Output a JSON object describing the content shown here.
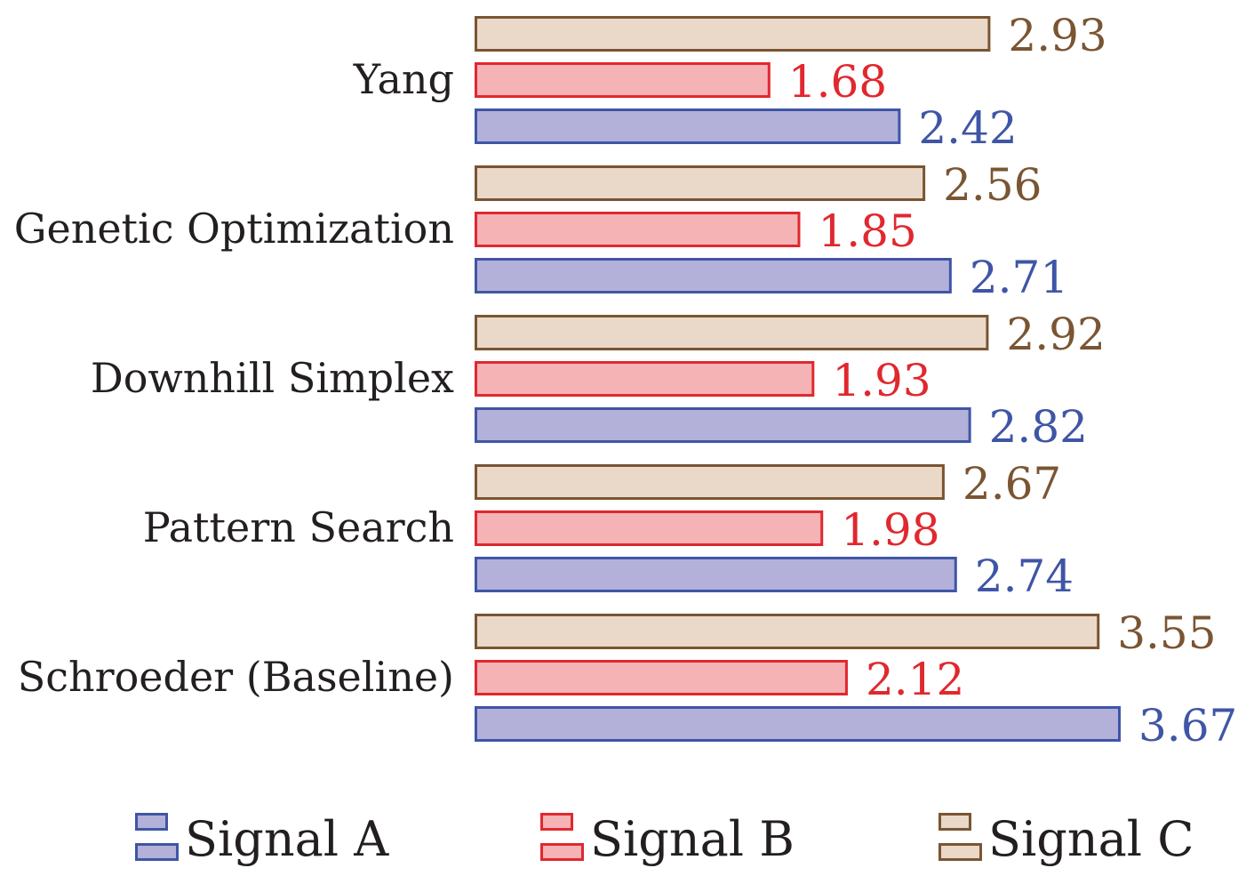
{
  "chart_data": {
    "type": "bar",
    "orientation": "horizontal",
    "categories": [
      "Yang",
      "Genetic Optimization",
      "Downhill Simplex",
      "Pattern Search",
      "Schroeder (Baseline)"
    ],
    "series": [
      {
        "name": "Signal C",
        "values": [
          2.93,
          2.56,
          2.92,
          2.67,
          3.55
        ],
        "fill": "#ead9c8",
        "stroke": "#7a5532",
        "label_color": "#7a5532"
      },
      {
        "name": "Signal B",
        "values": [
          1.68,
          1.85,
          1.93,
          1.98,
          2.12
        ],
        "fill": "#f5b3b6",
        "stroke": "#e0282e",
        "label_color": "#e0282e"
      },
      {
        "name": "Signal A",
        "values": [
          2.42,
          2.71,
          2.82,
          2.74,
          3.67
        ],
        "fill": "#b3b1d9",
        "stroke": "#3f55a6",
        "label_color": "#3f55a6"
      }
    ],
    "legend_order": [
      "Signal A",
      "Signal B",
      "Signal C"
    ],
    "xlim": [
      0,
      3.67
    ],
    "grid": false,
    "axes_visible": false,
    "legend_position": "bottom",
    "title": "",
    "xlabel": "",
    "ylabel": ""
  }
}
